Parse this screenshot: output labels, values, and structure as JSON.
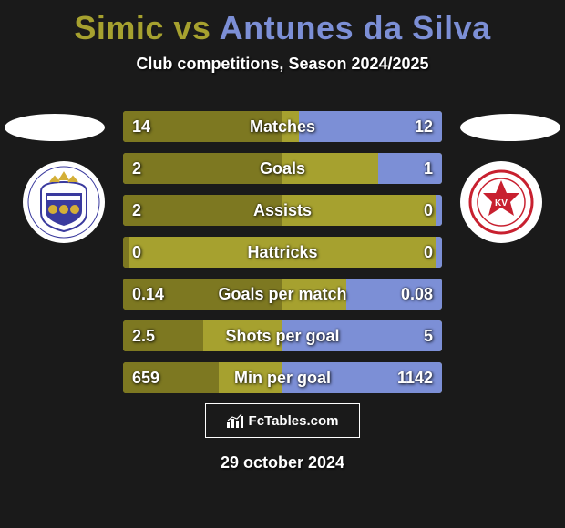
{
  "title": {
    "player1": "Simic",
    "vs": " vs ",
    "player2": "Antunes da Silva",
    "color1": "#a6a12f",
    "color2": "#7c8fd6"
  },
  "subtitle": "Club competitions, Season 2024/2025",
  "left_badge": {
    "bg": "#ffffff",
    "accent1": "#3a3a9e",
    "accent2": "#d4af37"
  },
  "right_badge": {
    "bg": "#ffffff",
    "accent": "#c8202f"
  },
  "bars": {
    "track_color": "#a6a12f",
    "left_fill_color": "#7d7821",
    "right_fill_color": "#7c8fd6",
    "rows": [
      {
        "label": "Matches",
        "left_val": "14",
        "right_val": "12",
        "left_pct": 50,
        "right_pct": 45
      },
      {
        "label": "Goals",
        "left_val": "2",
        "right_val": "1",
        "left_pct": 50,
        "right_pct": 20
      },
      {
        "label": "Assists",
        "left_val": "2",
        "right_val": "0",
        "left_pct": 50,
        "right_pct": 2
      },
      {
        "label": "Hattricks",
        "left_val": "0",
        "right_val": "0",
        "left_pct": 2,
        "right_pct": 2
      },
      {
        "label": "Goals per match",
        "left_val": "0.14",
        "right_val": "0.08",
        "left_pct": 50,
        "right_pct": 30
      },
      {
        "label": "Shots per goal",
        "left_val": "2.5",
        "right_val": "5",
        "left_pct": 25,
        "right_pct": 50
      },
      {
        "label": "Min per goal",
        "left_val": "659",
        "right_val": "1142",
        "left_pct": 30,
        "right_pct": 50
      }
    ]
  },
  "watermark": "FcTables.com",
  "date": "29 october 2024"
}
